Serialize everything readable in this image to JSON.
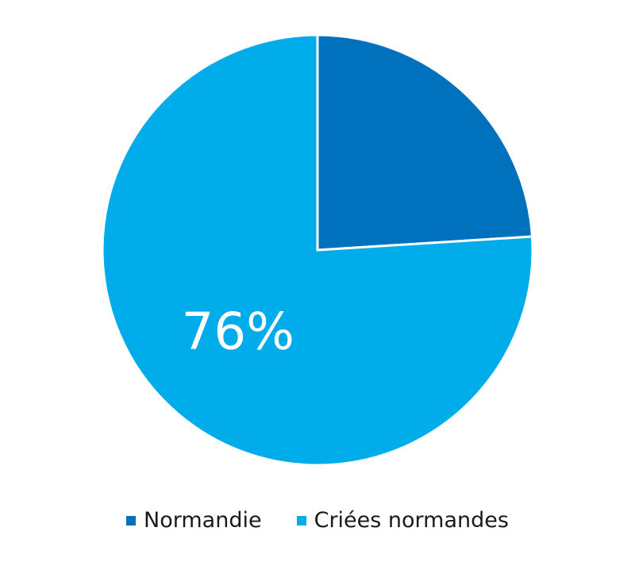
{
  "chart_data": {
    "type": "pie",
    "categories": [
      "Normandie",
      "Criées normandes"
    ],
    "values": [
      24,
      76
    ],
    "colors": [
      "#0071bd",
      "#00adea"
    ],
    "data_labels": [
      "",
      "76%"
    ],
    "start_angle_deg": 0,
    "direction": "clockwise",
    "legend_position": "bottom",
    "title": ""
  },
  "legend": {
    "items": [
      {
        "label": "Normandie",
        "color": "#0071bd"
      },
      {
        "label": "Criées normandes",
        "color": "#00adea"
      }
    ]
  }
}
